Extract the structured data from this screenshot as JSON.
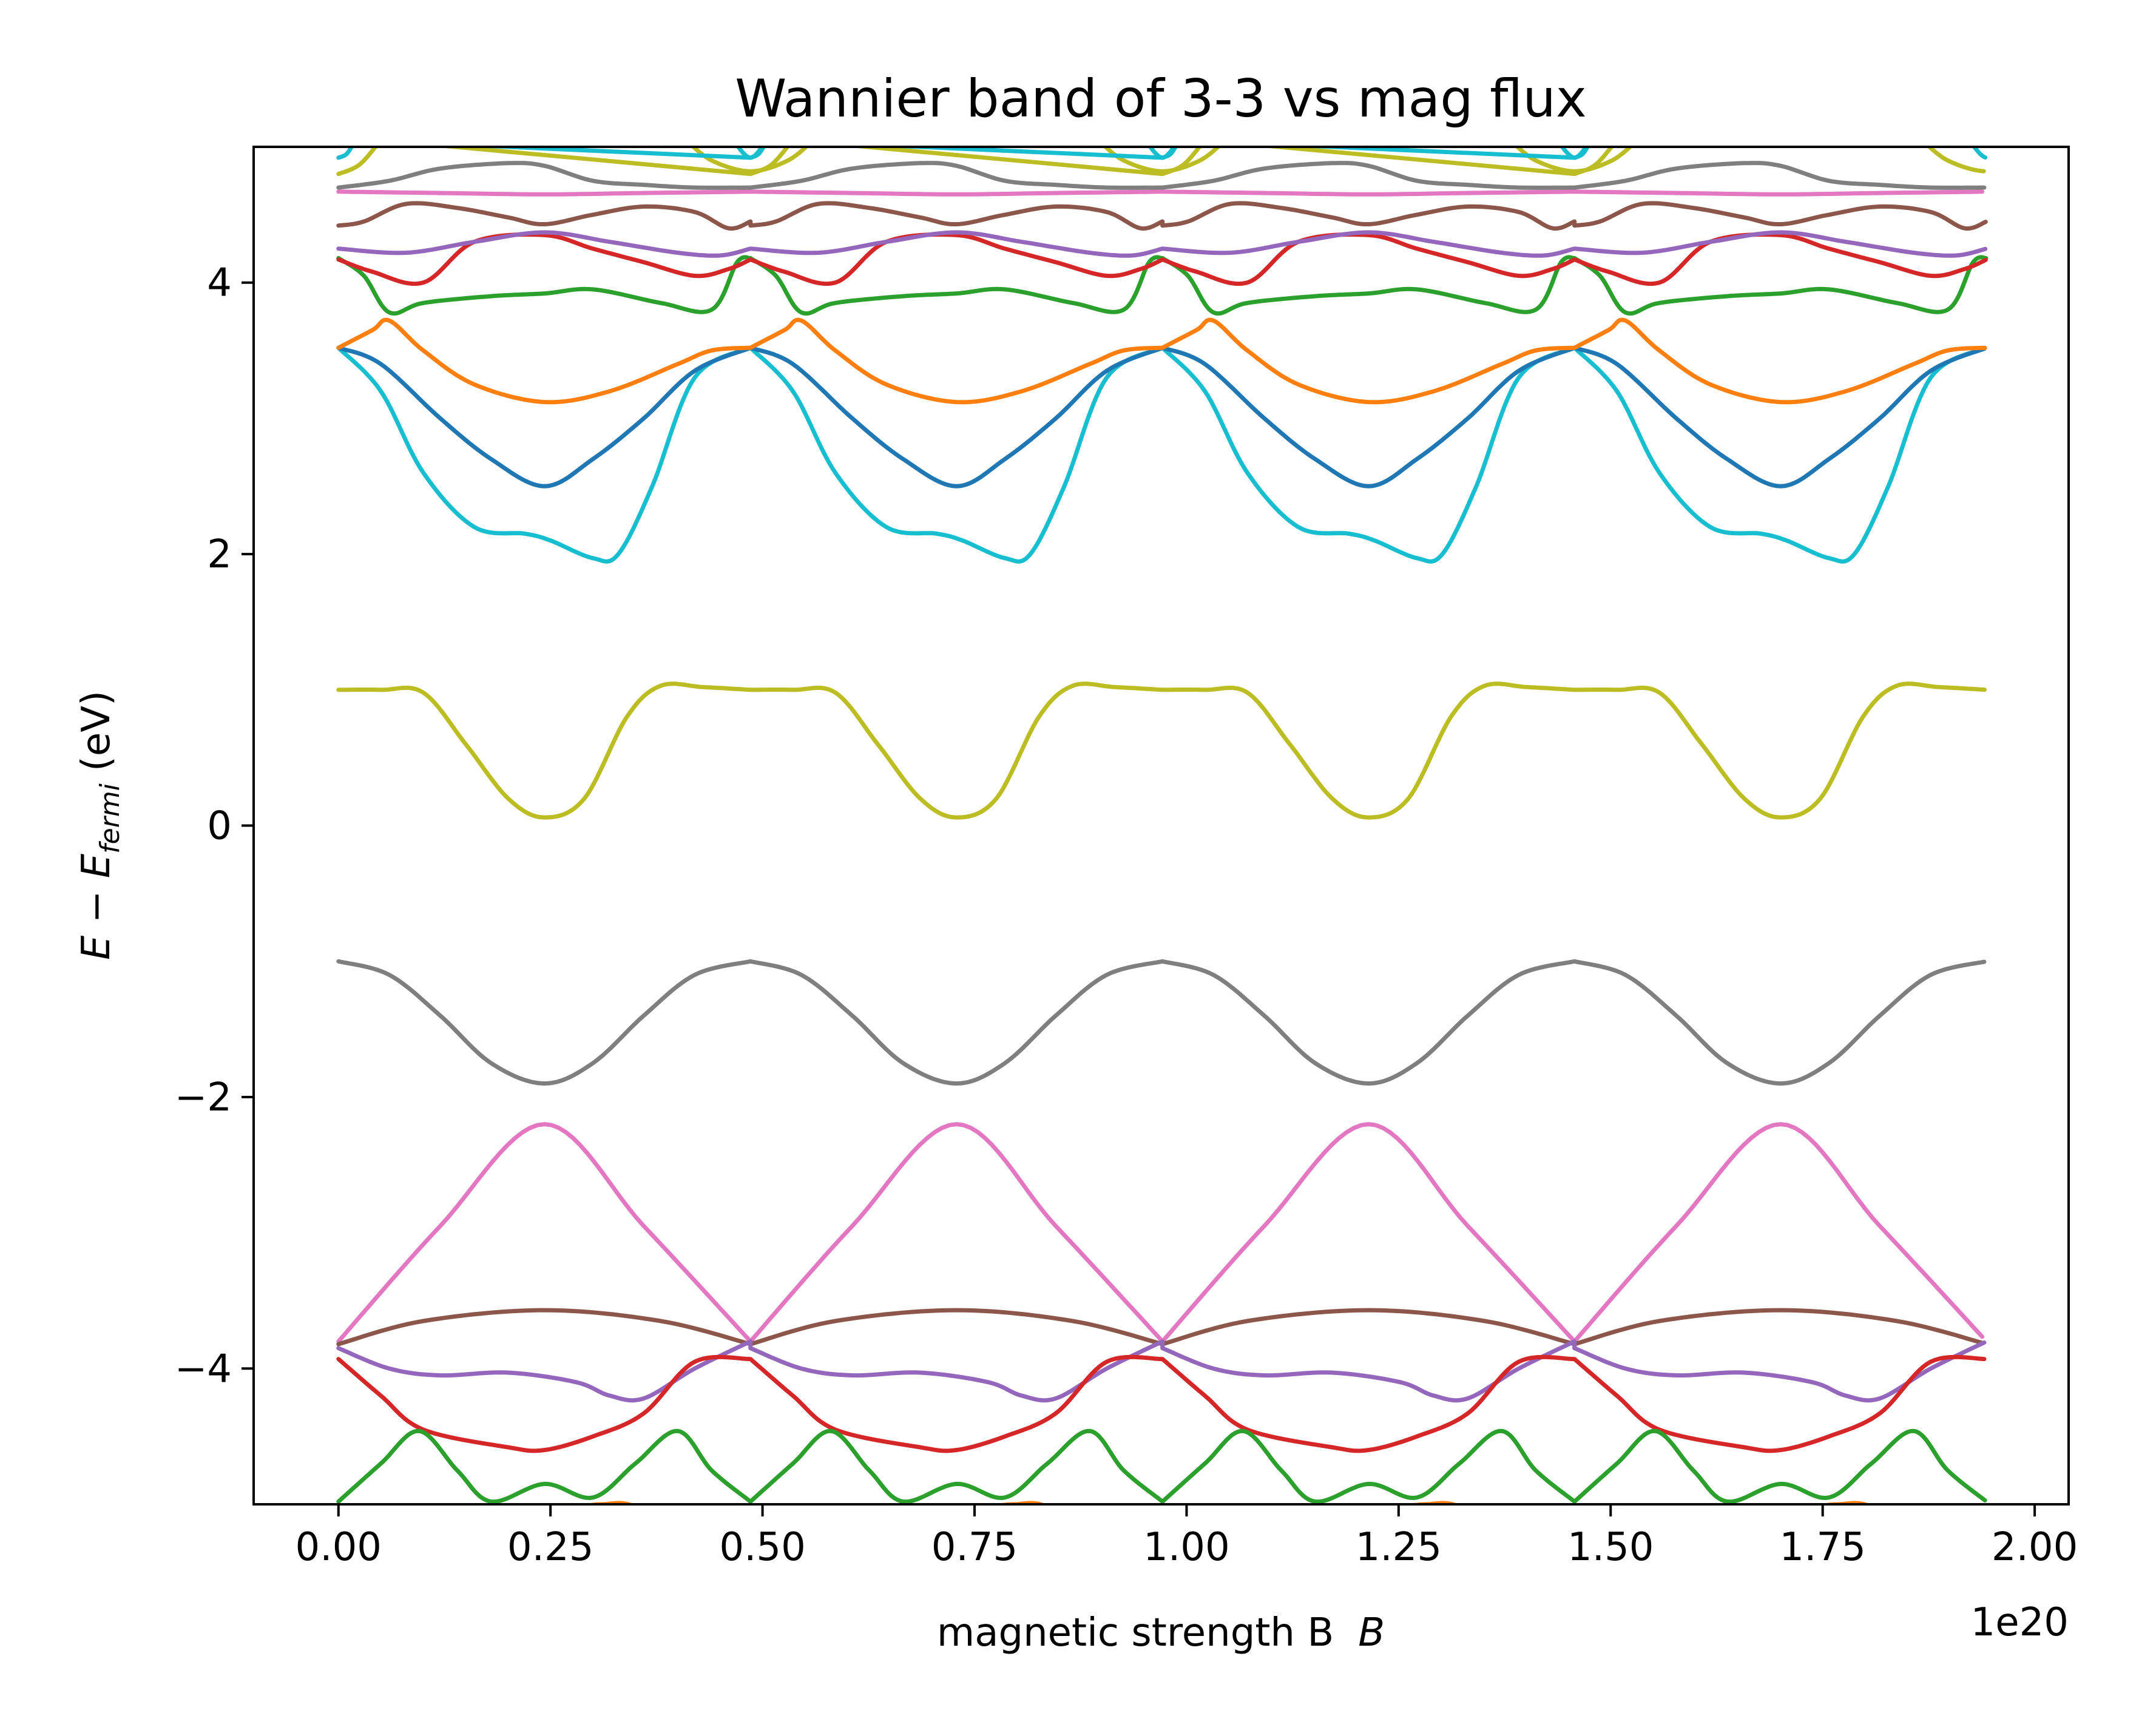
{
  "chart_data": {
    "type": "line",
    "title": "Wannier band of 3-3 vs mag flux",
    "xlabel": "magnetic strength B",
    "xlabel_symbol": "B",
    "ylabel": "E − E",
    "ylabel_subscript": "fermi",
    "ylabel_unit": "(eV)",
    "x_offset_label": "1e20",
    "xlim": [
      -0.1,
      2.04
    ],
    "ylim": [
      -5.0,
      5.0
    ],
    "x_range_data": [
      0.0,
      1.943
    ],
    "period": 0.4858,
    "grid": false,
    "legend": "none",
    "xticks": [
      0.0,
      0.25,
      0.5,
      0.75,
      1.0,
      1.25,
      1.5,
      1.75,
      2.0
    ],
    "xtick_labels": [
      "0.00",
      "0.25",
      "0.50",
      "0.75",
      "1.00",
      "1.25",
      "1.50",
      "1.75",
      "2.00"
    ],
    "yticks": [
      -4,
      -2,
      0,
      2,
      4
    ],
    "ytick_labels": [
      "−4",
      "−2",
      "0",
      "2",
      "4"
    ],
    "series": [
      {
        "color": "#bcbd22",
        "x": [
          0.0,
          0.05,
          0.1,
          0.15,
          0.2,
          0.243,
          0.29,
          0.34,
          0.38,
          0.43,
          0.4858
        ],
        "y": [
          1.0,
          1.0,
          0.98,
          0.6,
          0.2,
          0.06,
          0.2,
          0.8,
          1.03,
          1.02,
          1.0
        ]
      },
      {
        "color": "#7f7f7f",
        "x": [
          0.0,
          0.06,
          0.12,
          0.18,
          0.243,
          0.3,
          0.36,
          0.42,
          0.4858
        ],
        "y": [
          -1.0,
          -1.1,
          -1.4,
          -1.75,
          -1.9,
          -1.75,
          -1.4,
          -1.1,
          -1.0
        ]
      },
      {
        "color": "#e377c2",
        "x": [
          0.0,
          0.12,
          0.243,
          0.36,
          0.4858
        ],
        "y": [
          -3.8,
          -2.95,
          -2.2,
          -2.95,
          -3.8
        ]
      },
      {
        "color": "#8c564b",
        "x": [
          0.0,
          0.1,
          0.243,
          0.38,
          0.4858
        ],
        "y": [
          -3.82,
          -3.65,
          -3.57,
          -3.65,
          -3.82
        ]
      },
      {
        "color": "#9467bd",
        "x": [
          0.0,
          0.06,
          0.12,
          0.2,
          0.28,
          0.32,
          0.36,
          0.42,
          0.4858
        ],
        "y": [
          -3.85,
          -4.0,
          -4.05,
          -4.03,
          -4.1,
          -4.2,
          -4.22,
          -4.0,
          -3.8
        ]
      },
      {
        "color": "#d62728",
        "x": [
          0.0,
          0.05,
          0.1,
          0.2,
          0.243,
          0.3,
          0.36,
          0.42,
          0.4858
        ],
        "y": [
          -3.93,
          -4.2,
          -4.45,
          -4.58,
          -4.6,
          -4.5,
          -4.33,
          -3.95,
          -3.93
        ]
      },
      {
        "color": "#2ca02c",
        "x": [
          0.0,
          0.05,
          0.095,
          0.14,
          0.18,
          0.243,
          0.3,
          0.35,
          0.4,
          0.44,
          0.4858
        ],
        "y": [
          -4.98,
          -4.7,
          -4.46,
          -4.75,
          -4.98,
          -4.85,
          -4.95,
          -4.7,
          -4.46,
          -4.75,
          -4.98
        ]
      },
      {
        "color": "#ff7f0e",
        "x": [
          0.0,
          0.1,
          0.2,
          0.24,
          0.28,
          0.31,
          0.35,
          0.4,
          0.4858
        ],
        "y": [
          -5.5,
          -5.35,
          -5.1,
          -5.02,
          -5.02,
          -5.0,
          -5.02,
          -5.3,
          -5.5
        ]
      },
      {
        "color": "#17becf",
        "x": [
          0.0,
          0.05,
          0.1,
          0.16,
          0.22,
          0.25,
          0.3,
          0.33,
          0.37,
          0.42,
          0.4858
        ],
        "y": [
          3.52,
          3.2,
          2.6,
          2.2,
          2.15,
          2.1,
          1.97,
          2.0,
          2.5,
          3.3,
          3.52
        ]
      },
      {
        "color": "#1f77b4",
        "x": [
          0.0,
          0.05,
          0.12,
          0.18,
          0.243,
          0.3,
          0.36,
          0.42,
          0.4858
        ],
        "y": [
          3.52,
          3.4,
          3.0,
          2.7,
          2.5,
          2.7,
          3.0,
          3.35,
          3.52
        ]
      },
      {
        "color": "#ff7f0e",
        "x": [
          0.0,
          0.04,
          0.06,
          0.1,
          0.16,
          0.243,
          0.32,
          0.4,
          0.44,
          0.4858
        ],
        "y": [
          3.52,
          3.65,
          3.72,
          3.5,
          3.25,
          3.12,
          3.2,
          3.4,
          3.5,
          3.52
        ]
      },
      {
        "color": "#2ca02c",
        "x": [
          0.0,
          0.03,
          0.06,
          0.1,
          0.18,
          0.243,
          0.3,
          0.38,
          0.44,
          0.47,
          0.4858
        ],
        "y": [
          4.18,
          4.05,
          3.78,
          3.85,
          3.9,
          3.92,
          3.95,
          3.85,
          3.8,
          4.15,
          4.18
        ]
      },
      {
        "color": "#d62728",
        "x": [
          0.0,
          0.04,
          0.1,
          0.16,
          0.243,
          0.3,
          0.36,
          0.42,
          0.46,
          0.4858
        ],
        "y": [
          4.17,
          4.08,
          4.0,
          4.3,
          4.35,
          4.25,
          4.15,
          4.05,
          4.1,
          4.17
        ]
      },
      {
        "color": "#9467bd",
        "x": [
          0.0,
          0.08,
          0.16,
          0.243,
          0.32,
          0.4,
          0.45,
          0.4858
        ],
        "y": [
          4.25,
          4.22,
          4.3,
          4.37,
          4.3,
          4.22,
          4.2,
          4.25
        ]
      },
      {
        "color": "#8c564b",
        "x": [
          0.0,
          0.03,
          0.08,
          0.14,
          0.2,
          0.243,
          0.3,
          0.36,
          0.42,
          0.46,
          0.4858
        ],
        "y": [
          4.42,
          4.45,
          4.58,
          4.55,
          4.48,
          4.43,
          4.5,
          4.56,
          4.52,
          4.4,
          4.45
        ]
      },
      {
        "color": "#e377c2",
        "x": [
          0.0,
          0.12,
          0.243,
          0.36,
          0.4858
        ],
        "y": [
          4.67,
          4.66,
          4.65,
          4.66,
          4.67
        ]
      },
      {
        "color": "#7f7f7f",
        "x": [
          0.0,
          0.06,
          0.12,
          0.2,
          0.243,
          0.3,
          0.36,
          0.42,
          0.4858
        ],
        "y": [
          4.7,
          4.75,
          4.84,
          4.88,
          4.86,
          4.75,
          4.72,
          4.7,
          4.7
        ]
      },
      {
        "color": "#bcbd22",
        "x": [
          0.0,
          0.025,
          0.05
        ],
        "y": [
          4.8,
          4.87,
          5.05
        ]
      },
      {
        "color": "#bcbd22",
        "x": [
          0.41,
          0.44,
          0.4858,
          0.53,
          0.56
        ],
        "y": [
          5.05,
          4.9,
          4.82,
          4.9,
          5.05
        ]
      },
      {
        "color": "#17becf",
        "x": [
          0.0,
          0.01,
          0.02
        ],
        "y": [
          4.92,
          4.95,
          5.05
        ]
      },
      {
        "color": "#17becf",
        "x": [
          0.465,
          0.4858,
          0.505
        ],
        "y": [
          5.05,
          4.92,
          5.05
        ]
      }
    ]
  }
}
